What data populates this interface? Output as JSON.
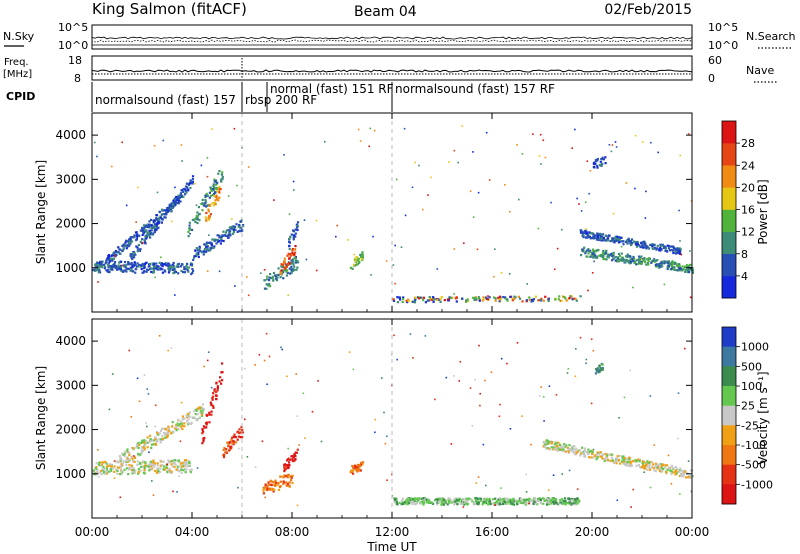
{
  "header": {
    "station": "King Salmon (fitACF)",
    "beam": "Beam 04",
    "date": "02/Feb/2015"
  },
  "aux_panels": {
    "nsky_label": "N.Sky",
    "nsky_ticks": [
      "10^5",
      "10^0"
    ],
    "nsearch_label": "N.Search",
    "nsearch_ticks": [
      "10^5",
      "10^0"
    ],
    "freq_label_1": "Freq.",
    "freq_label_2": "[MHz]",
    "freq_ticks": [
      "18",
      "8"
    ],
    "nave_label": "Nave",
    "nave_ticks": [
      "60",
      "0"
    ],
    "cpid_label": "CPID"
  },
  "cpid_segments": [
    {
      "label": "normalsound (fast) 157",
      "start_h": 0,
      "end_h": 6.0
    },
    {
      "label": "rbsp 200 RF",
      "start_h": 6.0,
      "end_h": 7.0
    },
    {
      "label": "normal (fast) 151 RF",
      "start_h": 7.0,
      "end_h": 12.0
    },
    {
      "label": "normalsound (fast) 157 RF",
      "start_h": 12.0,
      "end_h": 24.0
    }
  ],
  "chart_data": [
    {
      "type": "heatmap",
      "title": "",
      "xlabel": "Time UT",
      "ylabel": "Slant Range [km]",
      "xlim": [
        0,
        24
      ],
      "ylim": [
        0,
        4500
      ],
      "x_ticks": [
        "00:00",
        "04:00",
        "08:00",
        "12:00",
        "16:00",
        "20:00",
        "00:00"
      ],
      "y_ticks": [
        "1000",
        "2000",
        "3000",
        "4000"
      ],
      "colorbar": {
        "label": "Power [dB]",
        "ticks": [
          "4",
          "8",
          "12",
          "16",
          "20",
          "24",
          "28"
        ],
        "colors": [
          "#1428dc",
          "#2850b4",
          "#3c8c78",
          "#50b43c",
          "#e6c814",
          "#f08c14",
          "#e64614",
          "#dc1414"
        ]
      },
      "echo_regions": [
        {
          "x0": 0.0,
          "x1": 4.0,
          "y_start": 1050,
          "y_end": 1000,
          "thickness": 250,
          "level": 1
        },
        {
          "x0": 0.5,
          "x1": 3.5,
          "y_start": 1150,
          "y_end": 2600,
          "thickness": 200,
          "level": 1
        },
        {
          "x0": 1.5,
          "x1": 4.0,
          "y_start": 1250,
          "y_end": 3000,
          "thickness": 200,
          "level": 1
        },
        {
          "x0": 3.8,
          "x1": 5.2,
          "y_start": 1800,
          "y_end": 3200,
          "thickness": 350,
          "level": 2
        },
        {
          "x0": 4.5,
          "x1": 5.1,
          "y_start": 2100,
          "y_end": 2800,
          "thickness": 300,
          "level": 5
        },
        {
          "x0": 4.0,
          "x1": 6.0,
          "y_start": 1300,
          "y_end": 2000,
          "thickness": 250,
          "level": 1
        },
        {
          "x0": 6.8,
          "x1": 8.2,
          "y_start": 650,
          "y_end": 1150,
          "thickness": 300,
          "level": 2
        },
        {
          "x0": 7.5,
          "x1": 8.1,
          "y_start": 1000,
          "y_end": 1400,
          "thickness": 250,
          "level": 6
        },
        {
          "x0": 7.8,
          "x1": 8.2,
          "y_start": 1500,
          "y_end": 2000,
          "thickness": 300,
          "level": 1
        },
        {
          "x0": 10.3,
          "x1": 10.8,
          "y_start": 1050,
          "y_end": 1300,
          "thickness": 200,
          "level": 3
        },
        {
          "x0": 19.5,
          "x1": 23.5,
          "y_start": 1800,
          "y_end": 1400,
          "thickness": 150,
          "level": 1
        },
        {
          "x0": 19.5,
          "x1": 24.0,
          "y_start": 1400,
          "y_end": 1000,
          "thickness": 200,
          "level": 2
        },
        {
          "x0": 20.0,
          "x1": 20.5,
          "y_start": 3350,
          "y_end": 3450,
          "thickness": 200,
          "level": 1
        },
        {
          "x0": 12.0,
          "x1": 19.5,
          "y_start": 300,
          "y_end": 330,
          "thickness": 120,
          "level": 0
        }
      ]
    },
    {
      "type": "heatmap",
      "title": "",
      "xlabel": "Time UT",
      "ylabel": "Slant Range [km]",
      "xlim": [
        0,
        24
      ],
      "ylim": [
        0,
        4500
      ],
      "x_ticks": [
        "00:00",
        "04:00",
        "08:00",
        "12:00",
        "16:00",
        "20:00",
        "00:00"
      ],
      "y_ticks": [
        "1000",
        "2000",
        "3000",
        "4000"
      ],
      "colorbar": {
        "label": "Velocity [m s⁻¹]",
        "ticks": [
          "1000",
          "500",
          "100",
          "25",
          "-25",
          "-100",
          "-500",
          "-1000"
        ],
        "colors": [
          "#1e3cc8",
          "#3c78a0",
          "#3c8c50",
          "#64c850",
          "#c8c8c8",
          "#f0a014",
          "#f07814",
          "#e63214",
          "#dc1414"
        ]
      },
      "echo_regions": [
        {
          "x0": 0.0,
          "x1": 4.0,
          "y_start": 1150,
          "y_end": 1200,
          "thickness": 300,
          "level": 4
        },
        {
          "x0": 1.0,
          "x1": 4.5,
          "y_start": 1300,
          "y_end": 2500,
          "thickness": 300,
          "level": 4
        },
        {
          "x0": 4.3,
          "x1": 5.2,
          "y_start": 1700,
          "y_end": 3400,
          "thickness": 400,
          "level": 8
        },
        {
          "x0": 5.2,
          "x1": 6.0,
          "y_start": 1500,
          "y_end": 2000,
          "thickness": 250,
          "level": 7
        },
        {
          "x0": 6.8,
          "x1": 8.0,
          "y_start": 700,
          "y_end": 900,
          "thickness": 300,
          "level": 6
        },
        {
          "x0": 7.6,
          "x1": 8.2,
          "y_start": 1100,
          "y_end": 1500,
          "thickness": 250,
          "level": 8
        },
        {
          "x0": 10.3,
          "x1": 10.8,
          "y_start": 1100,
          "y_end": 1200,
          "thickness": 200,
          "level": 6
        },
        {
          "x0": 18.0,
          "x1": 24.0,
          "y_start": 1700,
          "y_end": 1000,
          "thickness": 200,
          "level": 4
        },
        {
          "x0": 20.1,
          "x1": 20.4,
          "y_start": 3350,
          "y_end": 3450,
          "thickness": 150,
          "level": 2
        },
        {
          "x0": 12.0,
          "x1": 19.5,
          "y_start": 400,
          "y_end": 400,
          "thickness": 150,
          "level": 3
        }
      ]
    }
  ]
}
